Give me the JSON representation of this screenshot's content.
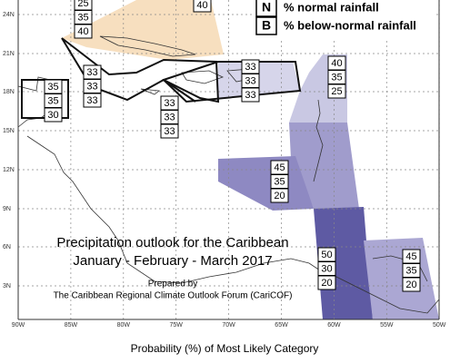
{
  "legend": [
    {
      "key": "N",
      "label": "% normal rainfall"
    },
    {
      "key": "B",
      "label": "% below-normal rainfall"
    }
  ],
  "latitude_labels": [
    "24N",
    "21N",
    "18N",
    "15N",
    "12N",
    "9N",
    "6N",
    "3N"
  ],
  "longitude_labels": [
    "90W",
    "85W",
    "80W",
    "75W",
    "70W",
    "65W",
    "60W",
    "55W",
    "50W"
  ],
  "regions": [
    {
      "values": [
        25,
        35,
        40
      ]
    },
    {
      "values": [
        40
      ]
    },
    {
      "values": [
        35,
        35,
        30
      ]
    },
    {
      "values": [
        33,
        33,
        33
      ]
    },
    {
      "values": [
        33,
        33,
        33
      ]
    },
    {
      "values": [
        33,
        33,
        33
      ]
    },
    {
      "values": [
        40,
        35,
        25
      ]
    },
    {
      "values": [
        45,
        35,
        20
      ]
    },
    {
      "values": [
        50,
        30,
        20
      ]
    },
    {
      "values": [
        45,
        35,
        20
      ]
    }
  ],
  "title": [
    "Precipitation outlook for the Caribbean",
    "January - February - March 2017"
  ],
  "prepared_by": "Prepared by",
  "organization": "The Caribbean Regional Climate Outlook Forum (CariCOF)",
  "caption": "Probability (%) of Most Likely Category"
}
